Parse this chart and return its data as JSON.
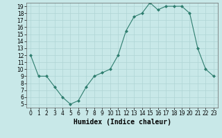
{
  "x": [
    0,
    1,
    2,
    3,
    4,
    5,
    6,
    7,
    8,
    9,
    10,
    11,
    12,
    13,
    14,
    15,
    16,
    17,
    18,
    19,
    20,
    21,
    22,
    23
  ],
  "y": [
    12,
    9,
    9,
    7.5,
    6,
    5,
    5.5,
    7.5,
    9,
    9.5,
    10,
    12,
    15.5,
    17.5,
    18,
    19.5,
    18.5,
    19,
    19,
    19,
    18,
    13,
    10,
    9
  ],
  "line_color": "#2e7d6e",
  "marker_color": "#2e7d6e",
  "bg_color": "#c8e8e8",
  "grid_color": "#afd4d4",
  "xlabel": "Humidex (Indice chaleur)",
  "xlim": [
    -0.5,
    23.5
  ],
  "ylim": [
    4.5,
    19.5
  ],
  "yticks": [
    5,
    6,
    7,
    8,
    9,
    10,
    11,
    12,
    13,
    14,
    15,
    16,
    17,
    18,
    19
  ],
  "xticks": [
    0,
    1,
    2,
    3,
    4,
    5,
    6,
    7,
    8,
    9,
    10,
    11,
    12,
    13,
    14,
    15,
    16,
    17,
    18,
    19,
    20,
    21,
    22,
    23
  ],
  "tick_label_fontsize": 5.5,
  "xlabel_fontsize": 7.0
}
